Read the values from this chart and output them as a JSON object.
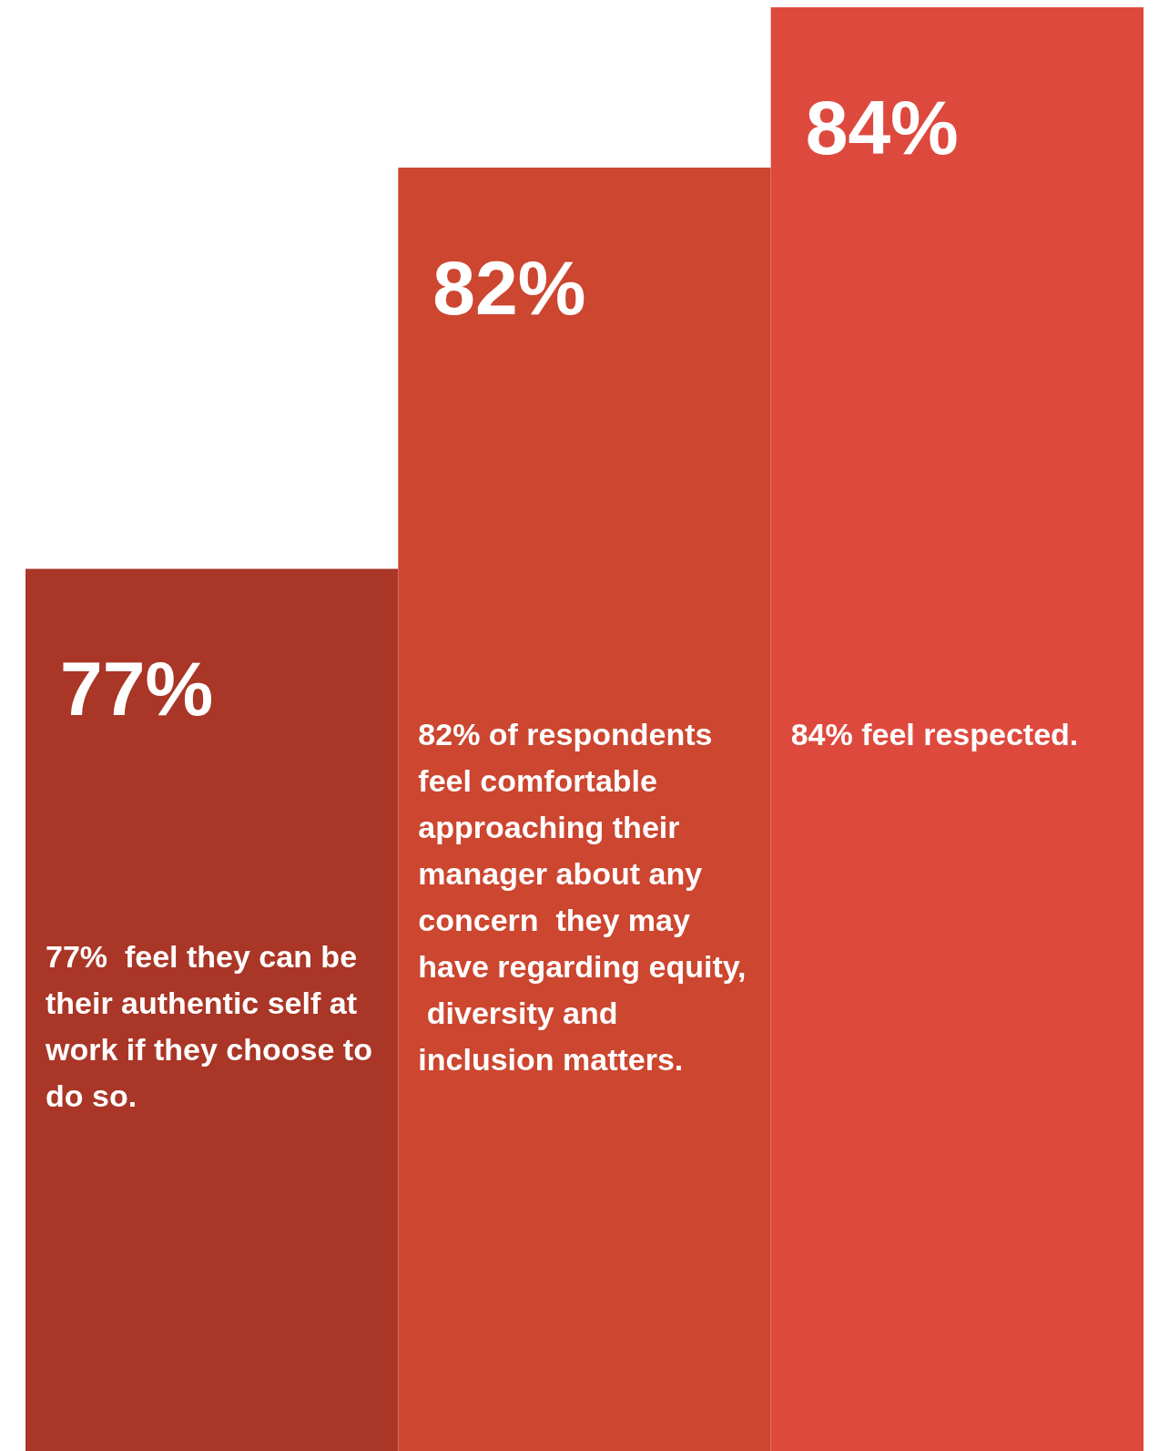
{
  "chart_data": {
    "type": "bar",
    "categories": [
      null,
      null,
      null
    ],
    "values": [
      77,
      82,
      84
    ],
    "colors": [
      "#a93627",
      "#cc4630",
      "#de493e"
    ],
    "ylim": [
      66,
      84
    ],
    "data_labels": true,
    "value_labels": [
      "77%",
      "82%",
      "84%"
    ],
    "annotations": [
      "77%  feel they can be their authentic self at work if they choose to do so.",
      "82% of respondents feel comfortable approaching their manager about any concern  they may have regarding equity, diversity and inclusion matters.",
      "84% feel respected."
    ]
  }
}
